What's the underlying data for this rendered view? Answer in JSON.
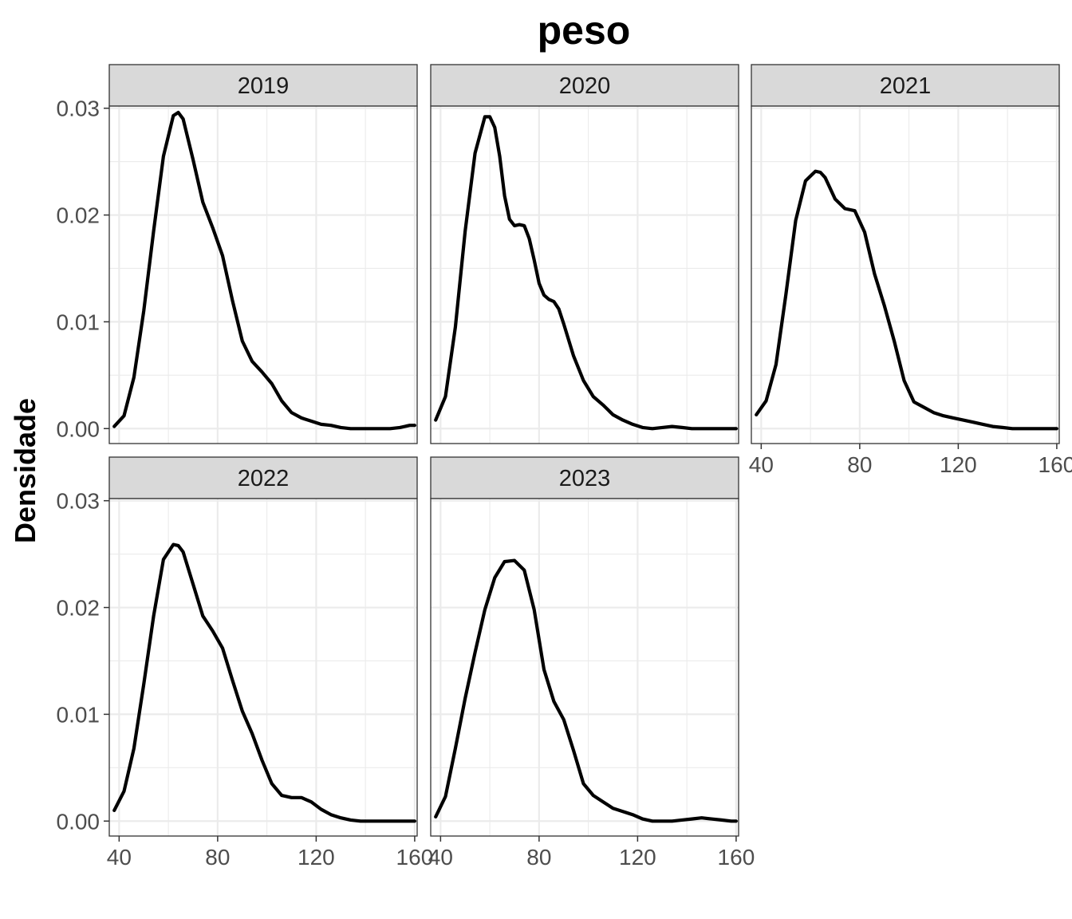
{
  "chart_data": {
    "type": "line",
    "title": "peso",
    "ylabel": "Densidade",
    "xlabel": "",
    "xlim": [
      36,
      161
    ],
    "ylim": [
      -0.0014,
      0.0302
    ],
    "x_ticks": [
      40,
      80,
      120,
      160
    ],
    "x_tick_labels": [
      "40",
      "80",
      "120",
      "160"
    ],
    "y_ticks": [
      0,
      0.01,
      0.02,
      0.03
    ],
    "y_tick_labels": [
      "0.00",
      "0.01",
      "0.02",
      "0.03"
    ],
    "grid": true,
    "facets": [
      {
        "label": "2019",
        "x": [
          38,
          42,
          46,
          50,
          54,
          58,
          62,
          64,
          66,
          70,
          74,
          78,
          82,
          86,
          90,
          94,
          98,
          102,
          106,
          110,
          114,
          118,
          122,
          126,
          130,
          134,
          138,
          142,
          146,
          150,
          154,
          158,
          160
        ],
        "y": [
          0.0002,
          0.0012,
          0.0048,
          0.011,
          0.0185,
          0.0255,
          0.0293,
          0.0296,
          0.029,
          0.0252,
          0.0212,
          0.0188,
          0.0162,
          0.012,
          0.0082,
          0.0063,
          0.0053,
          0.0042,
          0.0026,
          0.0015,
          0.001,
          0.0007,
          0.0004,
          0.0003,
          0.0001,
          0.0,
          0.0,
          0.0,
          0.0,
          0.0,
          0.0001,
          0.0003,
          0.0003
        ]
      },
      {
        "label": "2020",
        "x": [
          38,
          42,
          46,
          50,
          54,
          58,
          60,
          62,
          64,
          66,
          68,
          70,
          72,
          74,
          76,
          78,
          80,
          82,
          84,
          86,
          88,
          90,
          94,
          98,
          102,
          106,
          110,
          114,
          118,
          122,
          126,
          130,
          134,
          138,
          142,
          146,
          150,
          154,
          158,
          160
        ],
        "y": [
          0.0008,
          0.003,
          0.0095,
          0.0185,
          0.0258,
          0.0292,
          0.0292,
          0.0282,
          0.0255,
          0.0218,
          0.0196,
          0.019,
          0.0191,
          0.019,
          0.0178,
          0.0158,
          0.0136,
          0.0125,
          0.0121,
          0.0119,
          0.0112,
          0.0098,
          0.0068,
          0.0045,
          0.003,
          0.0022,
          0.0013,
          0.0008,
          0.0004,
          0.0001,
          0.0,
          0.0001,
          0.0002,
          0.0001,
          0.0,
          0.0,
          0.0,
          0.0,
          0.0,
          0.0
        ]
      },
      {
        "label": "2021",
        "x": [
          38,
          42,
          46,
          50,
          54,
          58,
          62,
          64,
          66,
          70,
          74,
          78,
          82,
          86,
          90,
          94,
          98,
          102,
          106,
          110,
          114,
          118,
          122,
          126,
          130,
          134,
          138,
          142,
          146,
          150,
          154,
          158,
          160
        ],
        "y": [
          0.0013,
          0.0026,
          0.006,
          0.0125,
          0.0195,
          0.0232,
          0.0241,
          0.024,
          0.0235,
          0.0215,
          0.0206,
          0.0204,
          0.0184,
          0.0145,
          0.0115,
          0.0082,
          0.0045,
          0.0025,
          0.002,
          0.0015,
          0.0012,
          0.001,
          0.0008,
          0.0006,
          0.0004,
          0.0002,
          0.0001,
          0.0,
          0.0,
          0.0,
          0.0,
          0.0,
          0.0
        ]
      },
      {
        "label": "2022",
        "x": [
          38,
          42,
          46,
          50,
          54,
          58,
          62,
          64,
          66,
          70,
          74,
          78,
          82,
          86,
          90,
          94,
          98,
          102,
          106,
          110,
          114,
          118,
          122,
          126,
          130,
          134,
          138,
          142,
          146,
          150,
          154,
          158,
          160
        ],
        "y": [
          0.001,
          0.0028,
          0.0068,
          0.0128,
          0.0192,
          0.0245,
          0.0259,
          0.0258,
          0.0252,
          0.0222,
          0.0192,
          0.0178,
          0.0162,
          0.0132,
          0.0103,
          0.0082,
          0.0057,
          0.0035,
          0.0024,
          0.0022,
          0.0022,
          0.0018,
          0.0011,
          0.0006,
          0.0003,
          0.0001,
          0.0,
          0.0,
          0.0,
          0.0,
          0.0,
          0.0,
          0.0
        ]
      },
      {
        "label": "2023",
        "x": [
          38,
          42,
          46,
          50,
          54,
          58,
          62,
          66,
          70,
          74,
          78,
          82,
          86,
          90,
          94,
          98,
          102,
          106,
          110,
          114,
          118,
          122,
          126,
          130,
          134,
          138,
          142,
          146,
          150,
          154,
          158,
          160
        ],
        "y": [
          0.0004,
          0.0023,
          0.0068,
          0.0115,
          0.0158,
          0.0198,
          0.0228,
          0.0243,
          0.0244,
          0.0235,
          0.0198,
          0.0142,
          0.0112,
          0.0095,
          0.0066,
          0.0035,
          0.0024,
          0.0018,
          0.0012,
          0.0009,
          0.0006,
          0.0002,
          0.0,
          0.0,
          0.0,
          0.0001,
          0.0002,
          0.0003,
          0.0002,
          0.0001,
          0.0,
          0.0
        ]
      }
    ]
  }
}
